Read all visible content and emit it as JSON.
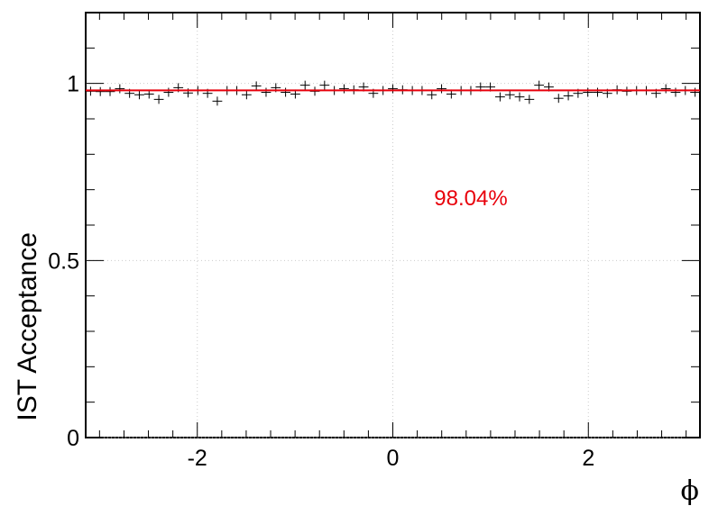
{
  "chart_data": {
    "type": "scatter",
    "title": "",
    "xlabel": "ϕ",
    "ylabel": "IST Acceptance",
    "xlim": [
      -3.1416,
      3.1416
    ],
    "ylim": [
      0,
      1.2
    ],
    "x_major_ticks": [
      -2,
      0,
      2
    ],
    "y_major_ticks": [
      0,
      0.5,
      1
    ],
    "x_tick_labels": [
      "-2",
      "0",
      "2"
    ],
    "y_tick_labels": [
      "0",
      "0.5",
      "1"
    ],
    "grid": "dotted",
    "bins": 63,
    "marker": "cross with x-error bars",
    "values": [
      0.978,
      0.977,
      0.977,
      0.985,
      0.972,
      0.968,
      0.97,
      0.955,
      0.975,
      0.988,
      0.973,
      0.98,
      0.972,
      0.95,
      0.98,
      0.98,
      0.968,
      0.993,
      0.975,
      0.988,
      0.975,
      0.97,
      0.995,
      0.978,
      0.995,
      0.98,
      0.985,
      0.982,
      0.99,
      0.972,
      0.98,
      0.985,
      0.982,
      0.98,
      0.98,
      0.968,
      0.985,
      0.97,
      0.98,
      0.98,
      0.99,
      0.99,
      0.962,
      0.968,
      0.962,
      0.955,
      0.995,
      0.99,
      0.958,
      0.965,
      0.972,
      0.975,
      0.975,
      0.972,
      0.982,
      0.978,
      0.98,
      0.98,
      0.972,
      0.985,
      0.975,
      0.98,
      0.975
    ],
    "fit": {
      "value": 0.9804,
      "color": "#e8000b",
      "label": "98.04%"
    },
    "marker_color": "#000000"
  }
}
